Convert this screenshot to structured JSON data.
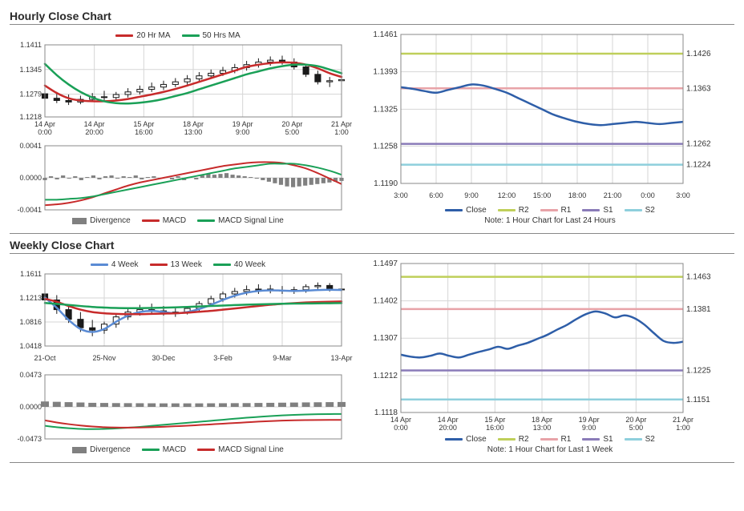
{
  "hourly": {
    "title": "Hourly Close Chart",
    "main": {
      "legend": {
        "ma20": "20 Hr MA",
        "ma50": "50 Hrs MA"
      },
      "yticks": [
        1.1218,
        1.1279,
        1.1345,
        1.1411
      ],
      "xticks": [
        "14 Apr 0:00",
        "14 Apr 20:00",
        "15 Apr 16:00",
        "18 Apr 13:00",
        "19 Apr 9:00",
        "20 Apr 5:00",
        "21 Apr 1:00"
      ],
      "colors": {
        "ma20": "#c72b2b",
        "ma50": "#1aa057",
        "candle": "#1a1a1a",
        "grid": "#d6d6d6",
        "axis": "#666"
      },
      "line_width": 2.5,
      "ma20_y": [
        1.1302,
        1.1282,
        1.1268,
        1.1262,
        1.126,
        1.126,
        1.1262,
        1.1266,
        1.1272,
        1.1278,
        1.1285,
        1.1293,
        1.1302,
        1.1312,
        1.1322,
        1.1332,
        1.1342,
        1.1352,
        1.1358,
        1.1362,
        1.1364,
        1.1363,
        1.1358,
        1.1348,
        1.1335,
        1.1325
      ],
      "ma50_y": [
        1.136,
        1.133,
        1.1305,
        1.1285,
        1.127,
        1.126,
        1.1255,
        1.1254,
        1.1256,
        1.126,
        1.1266,
        1.1274,
        1.1282,
        1.1292,
        1.1302,
        1.1312,
        1.1322,
        1.1332,
        1.134,
        1.1348,
        1.1354,
        1.1358,
        1.1358,
        1.1354,
        1.1345,
        1.1335
      ],
      "candles": [
        {
          "o": 1.128,
          "h": 1.13,
          "l": 1.1262,
          "c": 1.1268
        },
        {
          "o": 1.1268,
          "h": 1.1285,
          "l": 1.1255,
          "c": 1.1262
        },
        {
          "o": 1.1262,
          "h": 1.1278,
          "l": 1.125,
          "c": 1.1258
        },
        {
          "o": 1.1258,
          "h": 1.1275,
          "l": 1.1252,
          "c": 1.1265
        },
        {
          "o": 1.1265,
          "h": 1.1282,
          "l": 1.1258,
          "c": 1.1272
        },
        {
          "o": 1.1272,
          "h": 1.1288,
          "l": 1.1262,
          "c": 1.127
        },
        {
          "o": 1.127,
          "h": 1.1285,
          "l": 1.126,
          "c": 1.1278
        },
        {
          "o": 1.1278,
          "h": 1.1295,
          "l": 1.127,
          "c": 1.1285
        },
        {
          "o": 1.1285,
          "h": 1.1302,
          "l": 1.1278,
          "c": 1.1292
        },
        {
          "o": 1.1292,
          "h": 1.131,
          "l": 1.1285,
          "c": 1.1298
        },
        {
          "o": 1.1298,
          "h": 1.1315,
          "l": 1.129,
          "c": 1.1305
        },
        {
          "o": 1.1305,
          "h": 1.1322,
          "l": 1.1298,
          "c": 1.1312
        },
        {
          "o": 1.1312,
          "h": 1.133,
          "l": 1.1305,
          "c": 1.132
        },
        {
          "o": 1.132,
          "h": 1.1338,
          "l": 1.1312,
          "c": 1.1328
        },
        {
          "o": 1.1328,
          "h": 1.1345,
          "l": 1.132,
          "c": 1.1335
        },
        {
          "o": 1.1335,
          "h": 1.1352,
          "l": 1.1328,
          "c": 1.1342
        },
        {
          "o": 1.1342,
          "h": 1.136,
          "l": 1.1335,
          "c": 1.135
        },
        {
          "o": 1.135,
          "h": 1.1368,
          "l": 1.1342,
          "c": 1.1358
        },
        {
          "o": 1.1358,
          "h": 1.1375,
          "l": 1.135,
          "c": 1.1365
        },
        {
          "o": 1.1365,
          "h": 1.138,
          "l": 1.1355,
          "c": 1.137
        },
        {
          "o": 1.137,
          "h": 1.1382,
          "l": 1.1358,
          "c": 1.1365
        },
        {
          "o": 1.1365,
          "h": 1.1375,
          "l": 1.1345,
          "c": 1.1352
        },
        {
          "o": 1.1352,
          "h": 1.136,
          "l": 1.1325,
          "c": 1.1332
        },
        {
          "o": 1.1332,
          "h": 1.1342,
          "l": 1.1305,
          "c": 1.1312
        },
        {
          "o": 1.1312,
          "h": 1.1325,
          "l": 1.1298,
          "c": 1.1315
        },
        {
          "o": 1.1315,
          "h": 1.1328,
          "l": 1.1302,
          "c": 1.1318
        }
      ]
    },
    "macd": {
      "yticks": [
        -0.0041,
        0,
        0.0041
      ],
      "ytick_labels": [
        "-0.0041",
        "0.0000",
        "0.0041"
      ],
      "legend": {
        "div": "Divergence",
        "macd": "MACD",
        "signal": "MACD Signal Line"
      },
      "colors": {
        "div": "#808080",
        "macd": "#c72b2b",
        "signal": "#1aa057"
      },
      "div_vals": [
        -0.0003,
        0.0002,
        -0.0002,
        0.0003,
        -0.0001,
        0.0002,
        -0.0003,
        0.0001,
        0.0003,
        -0.0002,
        0.0002,
        0.0003,
        -0.0001,
        0.0002,
        0.0001,
        0.0003,
        -0.0002,
        0.0001,
        0.0002,
        -0.0001,
        0.0001,
        -0.0002,
        0.0002,
        -0.0003,
        0.0001,
        -0.0002,
        0.0003,
        0.0005,
        0.0004,
        0.0005,
        0.0006,
        0.0004,
        0.0003,
        0.0002,
        0.0001,
        -0.0001,
        -0.0003,
        -0.0005,
        -0.0007,
        -0.0009,
        -0.0011,
        -0.0012,
        -0.0011,
        -0.001,
        -0.0009,
        -0.0008,
        -0.0007,
        -0.0006,
        -0.0005,
        -0.0004
      ],
      "macd_y": [
        -0.0035,
        -0.0034,
        -0.0032,
        -0.0029,
        -0.0025,
        -0.002,
        -0.0015,
        -0.001,
        -0.0006,
        -0.0003,
        0.0,
        0.0003,
        0.0006,
        0.0009,
        0.0012,
        0.0015,
        0.0017,
        0.0019,
        0.002,
        0.002,
        0.0019,
        0.0016,
        0.0012,
        0.0006,
        -0.0001,
        -0.0008
      ],
      "signal_y": [
        -0.0028,
        -0.0028,
        -0.0027,
        -0.0026,
        -0.0024,
        -0.0021,
        -0.0018,
        -0.0015,
        -0.0012,
        -0.0009,
        -0.0006,
        -0.0003,
        0.0,
        0.0003,
        0.0006,
        0.0009,
        0.0012,
        0.0014,
        0.0016,
        0.0018,
        0.0018,
        0.0018,
        0.0016,
        0.0013,
        0.0009,
        0.0004
      ]
    },
    "levels": {
      "yticks": [
        1.119,
        1.1258,
        1.1325,
        1.1393,
        1.1461
      ],
      "xticks": [
        "3:00",
        "6:00",
        "9:00",
        "12:00",
        "15:00",
        "18:00",
        "21:00",
        "0:00",
        "3:00"
      ],
      "close_y": [
        1.1365,
        1.1362,
        1.1358,
        1.1355,
        1.136,
        1.1365,
        1.137,
        1.1368,
        1.1362,
        1.1355,
        1.1345,
        1.1335,
        1.1325,
        1.1315,
        1.1308,
        1.1302,
        1.1298,
        1.1296,
        1.1298,
        1.13,
        1.1302,
        1.13,
        1.1298,
        1.13,
        1.1302
      ],
      "R2": 1.1426,
      "R1": 1.1363,
      "S1": 1.1262,
      "S2": 1.1224,
      "colors": {
        "close": "#2e5ea8",
        "R2": "#bfcf5a",
        "R1": "#e8a3a8",
        "S1": "#8a7bb8",
        "S2": "#8ecfdc",
        "grid": "#d6d6d6"
      },
      "legend": {
        "close": "Close",
        "R2": "R2",
        "R1": "R1",
        "S1": "S1",
        "S2": "S2"
      },
      "note": "Note: 1 Hour Chart for Last 24 Hours"
    }
  },
  "weekly": {
    "title": "Weekly Close Chart",
    "main": {
      "legend": {
        "w4": "4 Week",
        "w13": "13 Week",
        "w40": "40 Week"
      },
      "yticks": [
        1.0418,
        1.0816,
        1.1213,
        1.1611
      ],
      "xticks": [
        "21-Oct",
        "25-Nov",
        "30-Dec",
        "3-Feb",
        "9-Mar",
        "13-Apr"
      ],
      "colors": {
        "w4": "#5a8bd4",
        "w13": "#c72b2b",
        "w40": "#1aa057",
        "candle": "#1a1a1a",
        "grid": "#d6d6d6"
      },
      "line_width": 2.5,
      "w4_y": [
        1.122,
        1.105,
        1.085,
        1.07,
        1.065,
        1.07,
        1.082,
        1.092,
        1.098,
        1.1,
        1.098,
        1.096,
        1.098,
        1.103,
        1.11,
        1.118,
        1.125,
        1.13,
        1.133,
        1.134,
        1.1335,
        1.133,
        1.1335,
        1.1345,
        1.135,
        1.1345
      ],
      "w13_y": [
        1.12,
        1.115,
        1.108,
        1.102,
        1.098,
        1.096,
        1.095,
        1.0945,
        1.0945,
        1.095,
        1.0955,
        1.096,
        1.097,
        1.0985,
        1.1,
        1.102,
        1.104,
        1.106,
        1.108,
        1.11,
        1.1115,
        1.1128,
        1.1138,
        1.1145,
        1.115,
        1.1155
      ],
      "w40_y": [
        1.113,
        1.1115,
        1.1098,
        1.108,
        1.1065,
        1.1055,
        1.1048,
        1.1045,
        1.1045,
        1.1048,
        1.1052,
        1.1058,
        1.1065,
        1.1072,
        1.108,
        1.1088,
        1.1095,
        1.1102,
        1.1108,
        1.1113,
        1.1117,
        1.112,
        1.1122,
        1.1124,
        1.1126,
        1.1128
      ],
      "candles": [
        {
          "o": 1.128,
          "h": 1.138,
          "l": 1.112,
          "c": 1.118
        },
        {
          "o": 1.118,
          "h": 1.126,
          "l": 1.095,
          "c": 1.102
        },
        {
          "o": 1.102,
          "h": 1.11,
          "l": 1.08,
          "c": 1.086
        },
        {
          "o": 1.086,
          "h": 1.098,
          "l": 1.065,
          "c": 1.072
        },
        {
          "o": 1.072,
          "h": 1.085,
          "l": 1.058,
          "c": 1.068
        },
        {
          "o": 1.068,
          "h": 1.082,
          "l": 1.062,
          "c": 1.078
        },
        {
          "o": 1.078,
          "h": 1.095,
          "l": 1.072,
          "c": 1.09
        },
        {
          "o": 1.09,
          "h": 1.105,
          "l": 1.085,
          "c": 1.098
        },
        {
          "o": 1.098,
          "h": 1.11,
          "l": 1.092,
          "c": 1.102
        },
        {
          "o": 1.102,
          "h": 1.112,
          "l": 1.096,
          "c": 1.1
        },
        {
          "o": 1.1,
          "h": 1.108,
          "l": 1.092,
          "c": 1.096
        },
        {
          "o": 1.096,
          "h": 1.104,
          "l": 1.09,
          "c": 1.098
        },
        {
          "o": 1.098,
          "h": 1.108,
          "l": 1.094,
          "c": 1.104
        },
        {
          "o": 1.104,
          "h": 1.116,
          "l": 1.1,
          "c": 1.112
        },
        {
          "o": 1.112,
          "h": 1.125,
          "l": 1.108,
          "c": 1.12
        },
        {
          "o": 1.12,
          "h": 1.132,
          "l": 1.115,
          "c": 1.128
        },
        {
          "o": 1.128,
          "h": 1.138,
          "l": 1.122,
          "c": 1.132
        },
        {
          "o": 1.132,
          "h": 1.142,
          "l": 1.126,
          "c": 1.135
        },
        {
          "o": 1.135,
          "h": 1.144,
          "l": 1.128,
          "c": 1.136
        },
        {
          "o": 1.136,
          "h": 1.143,
          "l": 1.129,
          "c": 1.134
        },
        {
          "o": 1.134,
          "h": 1.141,
          "l": 1.128,
          "c": 1.133
        },
        {
          "o": 1.133,
          "h": 1.14,
          "l": 1.128,
          "c": 1.135
        },
        {
          "o": 1.135,
          "h": 1.144,
          "l": 1.13,
          "c": 1.14
        },
        {
          "o": 1.14,
          "h": 1.147,
          "l": 1.134,
          "c": 1.142
        },
        {
          "o": 1.142,
          "h": 1.146,
          "l": 1.132,
          "c": 1.136
        },
        {
          "o": 1.136,
          "h": 1.142,
          "l": 1.13,
          "c": 1.135
        }
      ]
    },
    "macd": {
      "yticks": [
        -0.0473,
        0,
        0.0473
      ],
      "ytick_labels": [
        "-0.0473",
        "0.0000",
        "0.0473"
      ],
      "legend": {
        "div": "Divergence",
        "macd": "MACD",
        "signal": "MACD Signal Line"
      },
      "colors": {
        "div": "#808080",
        "macd": "#1aa057",
        "signal": "#c72b2b"
      },
      "div_vals": [
        0.008,
        0.0075,
        0.007,
        0.0065,
        0.006,
        0.0058,
        0.0056,
        0.0055,
        0.0054,
        0.0053,
        0.0052,
        0.0052,
        0.0052,
        0.0052,
        0.0053,
        0.0054,
        0.0055,
        0.0056,
        0.0058,
        0.006,
        0.0062,
        0.0064,
        0.0066,
        0.0068,
        0.007,
        0.0072
      ],
      "macd_y": [
        -0.028,
        -0.03,
        -0.0315,
        -0.0325,
        -0.0328,
        -0.0325,
        -0.0318,
        -0.0308,
        -0.0295,
        -0.028,
        -0.0265,
        -0.025,
        -0.0235,
        -0.022,
        -0.0205,
        -0.019,
        -0.0175,
        -0.016,
        -0.0148,
        -0.0136,
        -0.0126,
        -0.0118,
        -0.0112,
        -0.0108,
        -0.0106,
        -0.0105
      ],
      "signal_y": [
        -0.02,
        -0.023,
        -0.0255,
        -0.0275,
        -0.029,
        -0.03,
        -0.0305,
        -0.0306,
        -0.0304,
        -0.03,
        -0.0294,
        -0.0286,
        -0.0278,
        -0.0268,
        -0.0258,
        -0.0248,
        -0.0238,
        -0.0228,
        -0.0218,
        -0.021,
        -0.0203,
        -0.0198,
        -0.0195,
        -0.0193,
        -0.0192,
        -0.0192
      ]
    },
    "levels": {
      "yticks": [
        1.1118,
        1.1212,
        1.1307,
        1.1402,
        1.1497
      ],
      "xticks": [
        "14 Apr 0:00",
        "14 Apr 20:00",
        "15 Apr 16:00",
        "18 Apr 13:00",
        "19 Apr 9:00",
        "20 Apr 5:00",
        "21 Apr 1:00"
      ],
      "close_y": [
        1.1265,
        1.126,
        1.1258,
        1.1262,
        1.1268,
        1.1262,
        1.1258,
        1.1265,
        1.1272,
        1.1278,
        1.1285,
        1.128,
        1.1288,
        1.1295,
        1.1305,
        1.1315,
        1.1328,
        1.134,
        1.1355,
        1.1368,
        1.1375,
        1.137,
        1.136,
        1.1365,
        1.1358,
        1.1342,
        1.132,
        1.13,
        1.1295,
        1.1298
      ],
      "R2": 1.1463,
      "R1": 1.1381,
      "S1": 1.1225,
      "S2": 1.1151,
      "colors": {
        "close": "#2e5ea8",
        "R2": "#bfcf5a",
        "R1": "#e8a3a8",
        "S1": "#8a7bb8",
        "S2": "#8ecfdc",
        "grid": "#d6d6d6"
      },
      "legend": {
        "close": "Close",
        "R2": "R2",
        "R1": "R1",
        "S1": "S1",
        "S2": "S2"
      },
      "note": "Note: 1 Hour Chart for Last 1 Week"
    }
  }
}
